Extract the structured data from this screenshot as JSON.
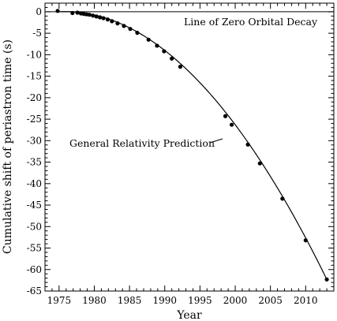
{
  "chart_data": {
    "type": "scatter",
    "title": "",
    "xlabel": "Year",
    "ylabel": "Cumulative shift of periastron time (s)",
    "xlim": [
      1973,
      2014
    ],
    "ylim": [
      -65,
      2
    ],
    "x_ticks": [
      1975,
      1980,
      1985,
      1990,
      1995,
      2000,
      2005,
      2010
    ],
    "y_ticks": [
      0,
      -5,
      -10,
      -15,
      -20,
      -25,
      -30,
      -35,
      -40,
      -45,
      -50,
      -55,
      -60,
      -65
    ],
    "grid": false,
    "legend": "none",
    "series": [
      {
        "type": "scatter",
        "x": [
          1974.8,
          1976.9,
          1977.6,
          1978.1,
          1978.5,
          1978.9,
          1979.3,
          1979.8,
          1980.3,
          1980.8,
          1981.3,
          1981.9,
          1982.5,
          1983.3,
          1984.2,
          1985.1,
          1986.1,
          1987.7,
          1988.9,
          1989.9,
          1991.0,
          1992.2,
          1998.6,
          1999.5,
          2001.8,
          2003.5,
          2006.7,
          2010.0,
          2013.0
        ],
        "y": [
          0.2,
          -0.3,
          -0.2,
          -0.4,
          -0.5,
          -0.6,
          -0.7,
          -0.9,
          -1.1,
          -1.3,
          -1.5,
          -1.8,
          -2.2,
          -2.7,
          -3.3,
          -4.0,
          -4.9,
          -6.5,
          -7.9,
          -9.2,
          -10.9,
          -12.8,
          -24.3,
          -26.3,
          -30.9,
          -35.3,
          -43.5,
          -53.2,
          -62.3
        ]
      }
    ],
    "curve": {
      "type": "line",
      "shape": "quadratic",
      "points": [
        [
          1975,
          0
        ],
        [
          2000,
          -26.3
        ],
        [
          2013,
          -62.3
        ]
      ]
    },
    "zero_line": {
      "y": 0
    },
    "annotations": {
      "zero_line_label": "Line of Zero Orbital Decay",
      "gr_label": "General Relativity Prediction"
    }
  }
}
